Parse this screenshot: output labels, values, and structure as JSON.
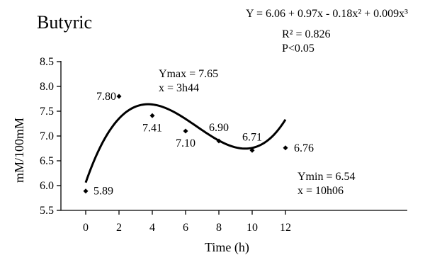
{
  "chart_data": {
    "type": "scatter",
    "title": "Butyric",
    "xlabel": "Time (h)",
    "ylabel": "mM/100mM",
    "xlim": [
      -1,
      13
    ],
    "ylim": [
      5.5,
      8.5
    ],
    "xticks": [
      0,
      2,
      4,
      6,
      8,
      10,
      12
    ],
    "yticks": [
      5.5,
      6.0,
      6.5,
      7.0,
      7.5,
      8.0,
      8.5
    ],
    "xtick_labels": [
      "0",
      "2",
      "4",
      "6",
      "8",
      "10",
      "12"
    ],
    "ytick_labels": [
      "5.5",
      "6.0",
      "6.5",
      "7.0",
      "7.5",
      "8.0",
      "8.5"
    ],
    "series": [
      {
        "x": [
          0,
          2,
          4,
          6,
          8,
          10,
          12
        ],
        "values": [
          5.89,
          7.8,
          7.41,
          7.1,
          6.9,
          6.71,
          6.76
        ],
        "labels": [
          "5.89",
          "7.80",
          "7.41",
          "7.10",
          "6.90",
          "6.71",
          "6.76"
        ]
      }
    ],
    "fit": {
      "type": "cubic",
      "coefficients": [
        6.06,
        0.97,
        -0.18,
        0.009
      ]
    },
    "annotations": {
      "equation": "Y = 6.06 + 0.97x - 0.18x² + 0.009x³",
      "r2": "R² = 0.826",
      "p": "P<0.05",
      "ymax": "Ymax = 7.65",
      "xmax": "x = 3h44",
      "ymin": "Ymin = 6.54",
      "xmin": "x = 10h06"
    },
    "grid": false,
    "legend": "none"
  }
}
